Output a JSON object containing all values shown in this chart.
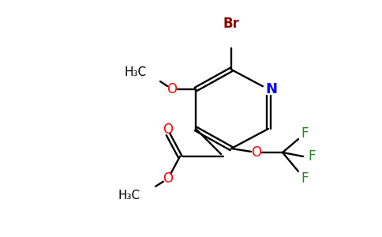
{
  "background_color": "#ffffff",
  "bond_color": "#000000",
  "atom_colors": {
    "Br": "#8b0000",
    "N": "#0000ff",
    "O": "#ff0000",
    "F": "#228b22",
    "C": "#000000"
  },
  "figsize": [
    4.84,
    3.0
  ],
  "dpi": 100
}
